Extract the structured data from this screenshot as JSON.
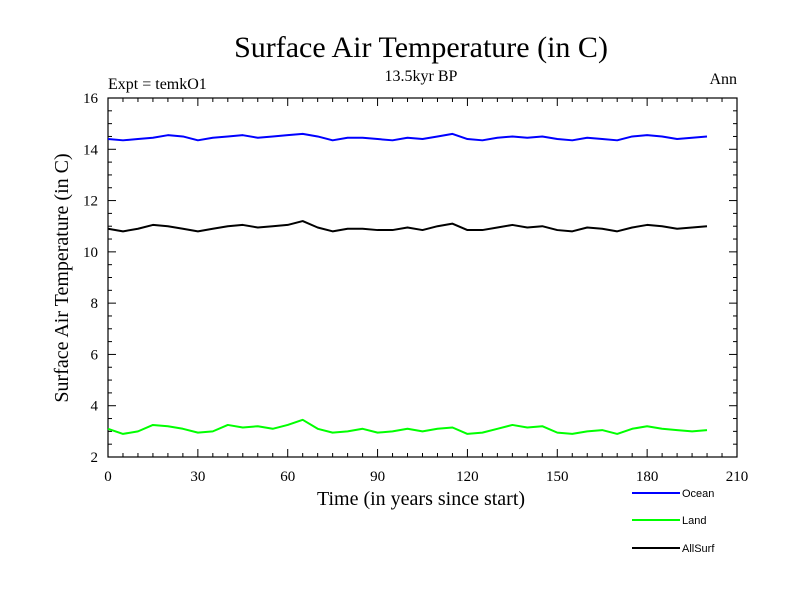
{
  "colors": {
    "ocean": "#0000ff",
    "land": "#00ff00",
    "allsurf": "#000000",
    "axis": "#000000"
  },
  "chart_data": {
    "type": "line",
    "title": "Surface Air Temperature (in C)",
    "subtitle": "13.5kyr BP",
    "experiment_label": "Expt = temkO1",
    "season_label": "Ann",
    "xlabel": "Time (in years since start)",
    "ylabel": "Surface Air Temperature (in C)",
    "xlim": [
      0,
      210
    ],
    "ylim": [
      2,
      16
    ],
    "xticks": [
      0,
      30,
      60,
      90,
      120,
      150,
      180,
      210
    ],
    "yticks": [
      2,
      4,
      6,
      8,
      10,
      12,
      14,
      16
    ],
    "x": [
      0,
      5,
      10,
      15,
      20,
      25,
      30,
      35,
      40,
      45,
      50,
      55,
      60,
      65,
      70,
      75,
      80,
      85,
      90,
      95,
      100,
      105,
      110,
      115,
      120,
      125,
      130,
      135,
      140,
      145,
      150,
      155,
      160,
      165,
      170,
      175,
      180,
      185,
      190,
      195,
      200
    ],
    "series": [
      {
        "name": "Ocean",
        "color_key": "ocean",
        "values": [
          14.4,
          14.35,
          14.4,
          14.45,
          14.55,
          14.5,
          14.35,
          14.45,
          14.5,
          14.55,
          14.45,
          14.5,
          14.55,
          14.6,
          14.5,
          14.35,
          14.45,
          14.45,
          14.4,
          14.35,
          14.45,
          14.4,
          14.5,
          14.6,
          14.4,
          14.35,
          14.45,
          14.5,
          14.45,
          14.5,
          14.4,
          14.35,
          14.45,
          14.4,
          14.35,
          14.5,
          14.55,
          14.5,
          14.4,
          14.45,
          14.5
        ]
      },
      {
        "name": "Land",
        "color_key": "land",
        "values": [
          3.1,
          2.9,
          3.0,
          3.25,
          3.2,
          3.1,
          2.95,
          3.0,
          3.25,
          3.15,
          3.2,
          3.1,
          3.25,
          3.45,
          3.1,
          2.95,
          3.0,
          3.1,
          2.95,
          3.0,
          3.1,
          3.0,
          3.1,
          3.15,
          2.9,
          2.95,
          3.1,
          3.25,
          3.15,
          3.2,
          2.95,
          2.9,
          3.0,
          3.05,
          2.9,
          3.1,
          3.2,
          3.1,
          3.05,
          3.0,
          3.05
        ]
      },
      {
        "name": "AllSurf",
        "color_key": "allsurf",
        "values": [
          10.9,
          10.8,
          10.9,
          11.05,
          11.0,
          10.9,
          10.8,
          10.9,
          11.0,
          11.05,
          10.95,
          11.0,
          11.05,
          11.2,
          10.95,
          10.8,
          10.9,
          10.9,
          10.85,
          10.85,
          10.95,
          10.85,
          11.0,
          11.1,
          10.85,
          10.85,
          10.95,
          11.05,
          10.95,
          11.0,
          10.85,
          10.8,
          10.95,
          10.9,
          10.8,
          10.95,
          11.05,
          11.0,
          10.9,
          10.95,
          11.0
        ]
      }
    ],
    "legend": [
      "Ocean",
      "Land",
      "AllSurf"
    ],
    "legend_position": "bottom-right",
    "grid": false
  }
}
